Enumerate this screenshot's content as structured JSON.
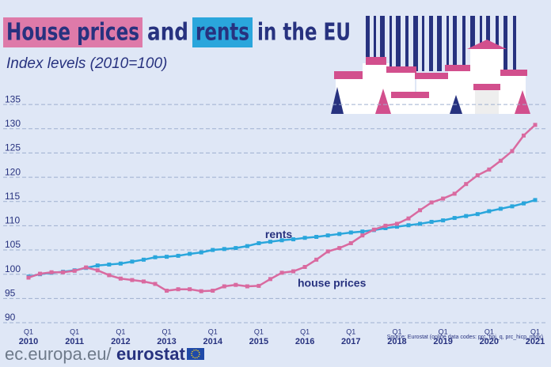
{
  "chart_data": {
    "type": "line",
    "title": [
      "House prices",
      "and",
      "rents",
      "in the EU"
    ],
    "subtitle": "Index levels (2010=100)",
    "categories": [
      {
        "quarter": "Q1",
        "year": "2010"
      },
      null,
      null,
      null,
      {
        "quarter": "Q1",
        "year": "2011"
      },
      null,
      null,
      null,
      {
        "quarter": "Q1",
        "year": "2012"
      },
      null,
      null,
      null,
      {
        "quarter": "Q1",
        "year": "2013"
      },
      null,
      null,
      null,
      {
        "quarter": "Q1",
        "year": "2014"
      },
      null,
      null,
      null,
      {
        "quarter": "Q1",
        "year": "2015"
      },
      null,
      null,
      null,
      {
        "quarter": "Q1",
        "year": "2016"
      },
      null,
      null,
      null,
      {
        "quarter": "Q1",
        "year": "2017"
      },
      null,
      null,
      null,
      {
        "quarter": "Q1",
        "year": "2018"
      },
      null,
      null,
      null,
      {
        "quarter": "Q1",
        "year": "2019"
      },
      null,
      null,
      null,
      {
        "quarter": "Q1",
        "year": "2020"
      },
      null,
      null,
      null,
      {
        "quarter": "Q1",
        "year": "2021"
      }
    ],
    "series": [
      {
        "name": "rents",
        "color": "#2aa6dc",
        "values": [
          99.5,
          100.0,
          100.3,
          100.5,
          100.8,
          101.3,
          101.8,
          102.0,
          102.2,
          102.6,
          103.0,
          103.5,
          103.6,
          103.8,
          104.2,
          104.5,
          105.0,
          105.2,
          105.4,
          105.8,
          106.4,
          106.7,
          107.0,
          107.2,
          107.5,
          107.7,
          108.0,
          108.3,
          108.6,
          108.8,
          109.1,
          109.5,
          109.8,
          110.1,
          110.4,
          110.8,
          111.1,
          111.6,
          112.0,
          112.4,
          113.0,
          113.5,
          114.0,
          114.6,
          115.3
        ]
      },
      {
        "name": "house prices",
        "color": "#d96aa0",
        "values": [
          99.3,
          100.1,
          100.4,
          100.4,
          100.7,
          101.4,
          100.8,
          99.8,
          99.1,
          98.8,
          98.5,
          98.0,
          96.6,
          96.9,
          96.9,
          96.5,
          96.6,
          97.5,
          97.8,
          97.5,
          97.6,
          99.0,
          100.3,
          100.6,
          101.5,
          103.0,
          104.7,
          105.4,
          106.4,
          108.0,
          109.2,
          110.0,
          110.4,
          111.5,
          113.2,
          114.8,
          115.6,
          116.6,
          118.6,
          120.4,
          121.6,
          123.4,
          125.4,
          128.6,
          130.8
        ]
      }
    ],
    "ylim": [
      90,
      136
    ],
    "yticks": [
      90,
      95,
      100,
      105,
      110,
      115,
      120,
      125,
      130,
      135
    ],
    "grid": true,
    "source": "Source: Eurostat (online data codes: prc_hpi_q, prc_hicp_midx)",
    "footer": [
      "ec.europa.eu/",
      "eurostat"
    ]
  }
}
